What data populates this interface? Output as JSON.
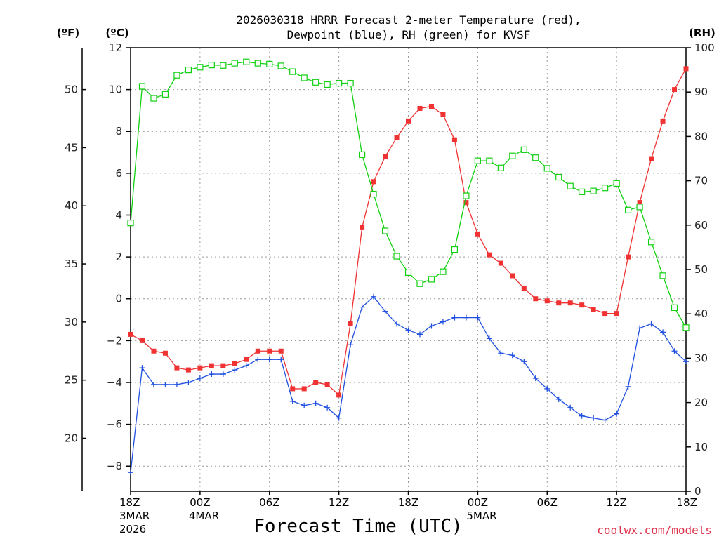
{
  "chart_data": {
    "type": "line",
    "title_line1": "2026030318 HRRR Forecast 2-meter Temperature (red),",
    "title_line2": "Dewpoint (blue), RH (green) for KVSF",
    "xlabel": "Forecast Time (UTC)",
    "credit": "coolwx.com/models",
    "units": {
      "fahrenheit": "(ºF)",
      "celsius": "(ºC)",
      "rh": "(RH)"
    },
    "left_axis_c": {
      "ylim": [
        -9.2,
        12
      ],
      "ticks": [
        12,
        10,
        8,
        6,
        4,
        2,
        0,
        -2,
        -4,
        -6,
        -8
      ]
    },
    "far_left_axis_f": {
      "ticks": [
        50,
        45,
        40,
        35,
        30,
        25,
        20
      ]
    },
    "right_axis_rh": {
      "ylim": [
        0,
        100
      ],
      "ticks": [
        100,
        90,
        80,
        70,
        60,
        50,
        40,
        30,
        20,
        10,
        0
      ]
    },
    "x_axis": {
      "xlim": [
        0,
        48
      ],
      "ticks": [
        {
          "x": 0,
          "label": "18Z",
          "sub1": "3MAR",
          "sub2": "2026"
        },
        {
          "x": 6,
          "label": "00Z",
          "sub1": "4MAR",
          "sub2": ""
        },
        {
          "x": 12,
          "label": "06Z",
          "sub1": "",
          "sub2": ""
        },
        {
          "x": 18,
          "label": "12Z",
          "sub1": "",
          "sub2": ""
        },
        {
          "x": 24,
          "label": "18Z",
          "sub1": "",
          "sub2": ""
        },
        {
          "x": 30,
          "label": "00Z",
          "sub1": "5MAR",
          "sub2": ""
        },
        {
          "x": 36,
          "label": "06Z",
          "sub1": "",
          "sub2": ""
        },
        {
          "x": 42,
          "label": "12Z",
          "sub1": "",
          "sub2": ""
        },
        {
          "x": 48,
          "label": "18Z",
          "sub1": "",
          "sub2": ""
        }
      ]
    },
    "series": [
      {
        "name": "Temperature",
        "unit": "C",
        "color": "#f03232",
        "marker": "filled-square",
        "values": [
          -1.7,
          -2.0,
          -2.5,
          -2.6,
          -3.3,
          -3.4,
          -3.3,
          -3.2,
          -3.2,
          -3.1,
          -2.9,
          -2.5,
          -2.5,
          -2.5,
          -4.3,
          -4.3,
          -4.0,
          -4.1,
          -4.6,
          -1.2,
          3.4,
          5.6,
          6.8,
          7.7,
          8.5,
          9.1,
          9.2,
          8.8,
          7.6,
          4.6,
          3.1,
          2.1,
          1.7,
          1.1,
          0.5,
          0.0,
          -0.1,
          -0.2,
          -0.2,
          -0.3,
          -0.5,
          -0.7,
          -0.7,
          2.0,
          4.6,
          6.7,
          8.5,
          10.0,
          11.0
        ]
      },
      {
        "name": "Dewpoint",
        "unit": "C",
        "color": "#2050e0",
        "marker": "plus",
        "values": [
          -8.3,
          -3.3,
          -4.1,
          -4.1,
          -4.1,
          -4.0,
          -3.8,
          -3.6,
          -3.6,
          -3.4,
          -3.2,
          -2.9,
          -2.9,
          -2.9,
          -4.9,
          -5.1,
          -5.0,
          -5.2,
          -5.7,
          -2.2,
          -0.4,
          0.1,
          -0.6,
          -1.2,
          -1.5,
          -1.7,
          -1.3,
          -1.1,
          -0.9,
          -0.9,
          -0.9,
          -1.9,
          -2.6,
          -2.7,
          -3.0,
          -3.8,
          -4.3,
          -4.8,
          -5.2,
          -5.6,
          -5.7,
          -5.8,
          -5.5,
          -4.2,
          -1.4,
          -1.2,
          -1.6,
          -2.5,
          -3.0
        ]
      },
      {
        "name": "RH",
        "unit": "%",
        "color": "#10d010",
        "marker": "open-square",
        "values": [
          60.5,
          91.3,
          88.6,
          89.5,
          93.8,
          95.0,
          95.6,
          96.1,
          96.0,
          96.5,
          96.8,
          96.5,
          96.3,
          95.9,
          94.6,
          93.2,
          92.2,
          91.7,
          92.0,
          92.0,
          75.9,
          67.0,
          58.7,
          53.0,
          49.3,
          46.8,
          47.8,
          49.5,
          54.5,
          66.6,
          74.5,
          74.5,
          72.9,
          75.6,
          77.0,
          75.2,
          72.8,
          70.8,
          68.8,
          67.5,
          67.7,
          68.4,
          69.4,
          63.4,
          64.1,
          56.2,
          48.6,
          41.4,
          36.9
        ]
      }
    ]
  }
}
